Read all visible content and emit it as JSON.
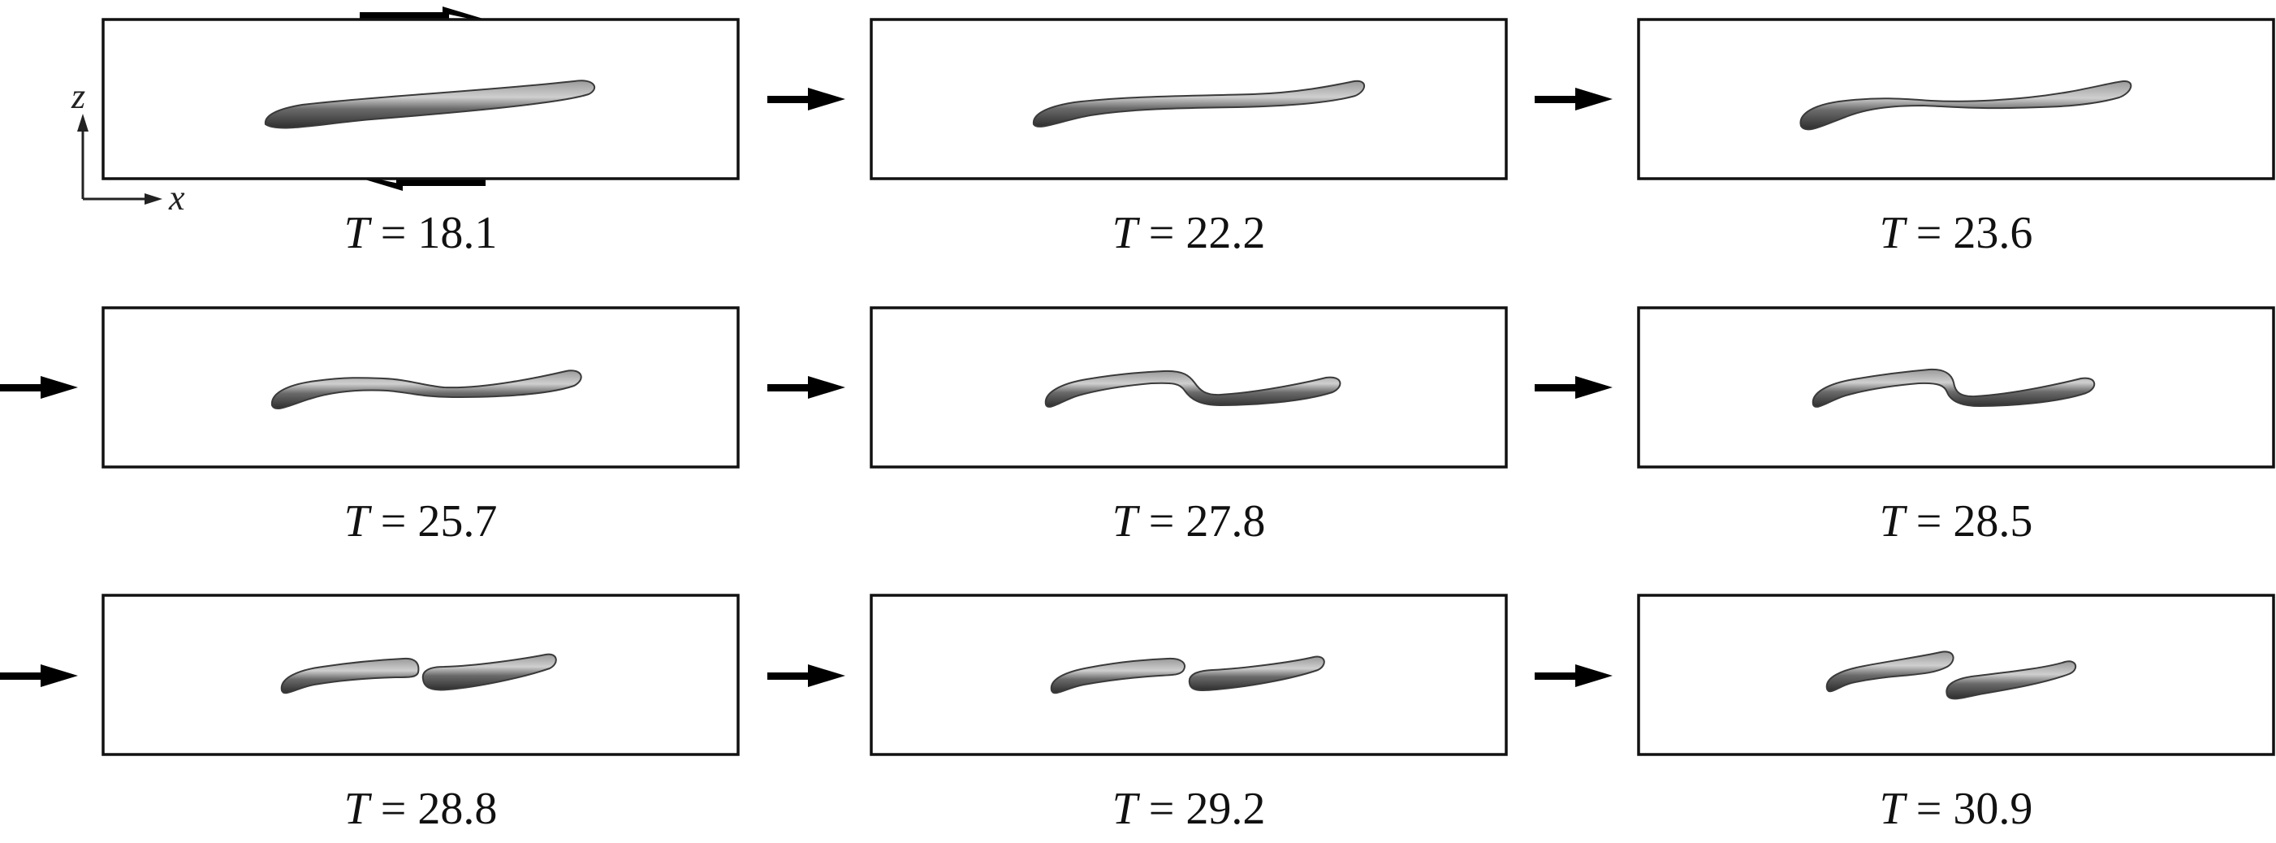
{
  "figure": {
    "axes": {
      "vertical": "z",
      "horizontal": "x"
    },
    "panels": [
      {
        "time_symbol": "T",
        "time_value": "18.1",
        "state": "straight"
      },
      {
        "time_symbol": "T",
        "time_value": "22.2",
        "state": "slight-bend"
      },
      {
        "time_symbol": "T",
        "time_value": "23.6",
        "state": "bend"
      },
      {
        "time_symbol": "T",
        "time_value": "25.7",
        "state": "wavy"
      },
      {
        "time_symbol": "T",
        "time_value": "27.8",
        "state": "kinked"
      },
      {
        "time_symbol": "T",
        "time_value": "28.5",
        "state": "necked"
      },
      {
        "time_symbol": "T",
        "time_value": "28.8",
        "state": "nearly-split"
      },
      {
        "time_symbol": "T",
        "time_value": "29.2",
        "state": "split"
      },
      {
        "time_symbol": "T",
        "time_value": "30.9",
        "state": "separated"
      }
    ],
    "colors": {
      "frame": "#111111",
      "arrow": "#000000",
      "droplet_dark": "#3a3a3a",
      "droplet_light": "#bdbdbd"
    }
  }
}
